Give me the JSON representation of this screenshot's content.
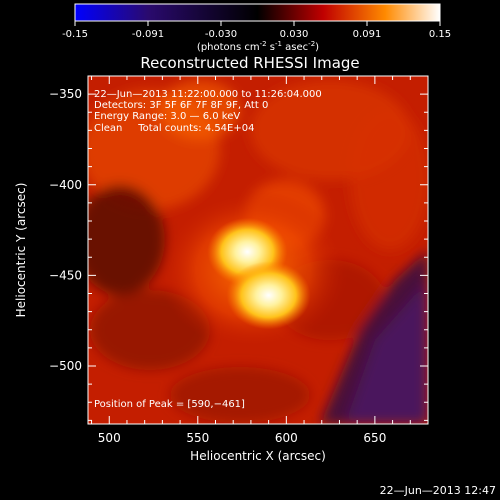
{
  "colorbar": {
    "ticks": [
      "-0.15",
      "-0.091",
      "-0.030",
      "0.030",
      "0.091",
      "0.15"
    ],
    "unit_main": "(photons cm",
    "unit_sup1": "-2",
    "unit_mid1": " s",
    "unit_sup2": "-1",
    "unit_mid2": " asec",
    "unit_sup3": "-2",
    "unit_end": ")",
    "range": [
      -0.15,
      0.15
    ],
    "colors": [
      "#0000ff",
      "#2a0a6e",
      "#000000",
      "#b00000",
      "#ff8a00",
      "#ffffff"
    ]
  },
  "chart_data": {
    "type": "heatmap",
    "title": "Reconstructed RHESSI Image",
    "xlabel": "Heliocentric X (arcsec)",
    "ylabel": "Heliocentric Y (arcsec)",
    "xlim": [
      488,
      680
    ],
    "ylim": [
      -532,
      -340
    ],
    "x_ticks": [
      500,
      550,
      600,
      650
    ],
    "y_ticks": [
      -350,
      -400,
      -450,
      -500
    ],
    "x_tick_labels": [
      "500",
      "550",
      "600",
      "650"
    ],
    "y_tick_labels": [
      "−350",
      "−400",
      "−450",
      "−500"
    ],
    "sources": [
      {
        "x": 578,
        "y": -437,
        "value": 0.14
      },
      {
        "x": 590,
        "y": -461,
        "value": 0.15
      }
    ],
    "peak": {
      "x": 590,
      "y": -461
    },
    "total_counts": "4.54E+04"
  },
  "annotations": {
    "line1": "22—Jun—2013 11:22:00.000 to 11:26:04.000",
    "line2": "Detectors: 3F 5F 6F 7F 8F 9F, Att 0",
    "line3": "Energy Range: 3.0 — 6.0 keV",
    "line4": "Clean     Total counts: 4.54E+04",
    "peak_text": "Position of Peak = [590,−461]"
  },
  "footer": {
    "date": "22—Jun—2013 12:47"
  }
}
